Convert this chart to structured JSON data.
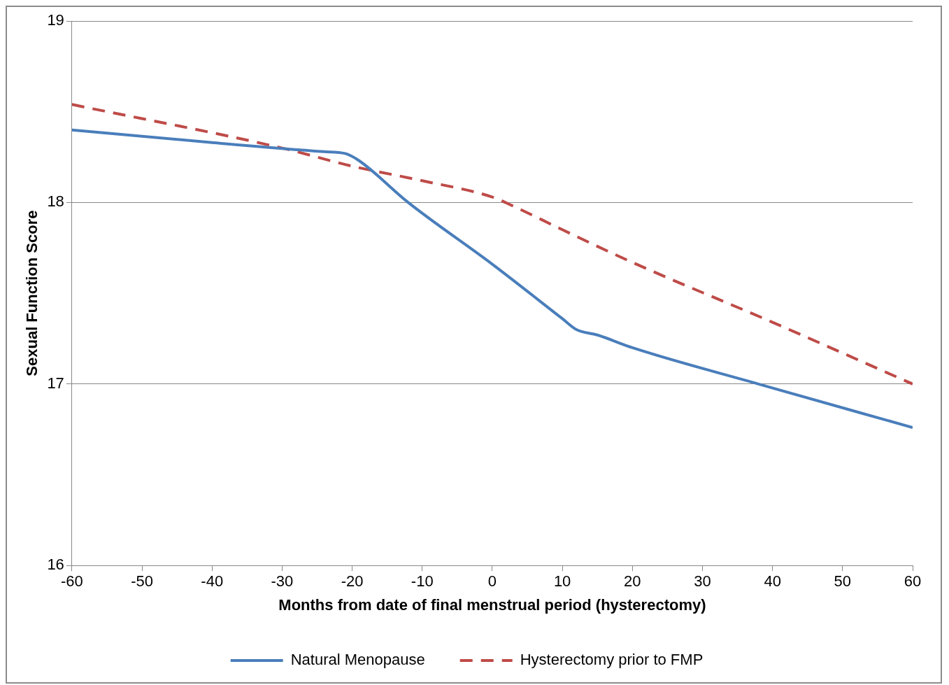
{
  "chart_data": {
    "type": "line",
    "xlabel": "Months from date of final menstrual period (hysterectomy)",
    "ylabel": "Sexual Function Score",
    "xlim": [
      -60,
      60
    ],
    "xticks": [
      -60,
      -50,
      -40,
      -30,
      -20,
      -10,
      0,
      10,
      20,
      30,
      40,
      50,
      60
    ],
    "ylim": [
      16,
      19
    ],
    "yticks": [
      16,
      17,
      18,
      19
    ],
    "grid": "y",
    "legend": "bottom",
    "marker": "none",
    "series": [
      {
        "name": "Natural Menopause",
        "color": "#4a7ebb",
        "line_style": "solid",
        "x": [
          -60,
          -40,
          -24,
          -21,
          -19,
          -12,
          0,
          10,
          12,
          15,
          20,
          38,
          60
        ],
        "values": [
          18.4,
          18.33,
          18.28,
          18.27,
          18.23,
          18.0,
          17.66,
          17.36,
          17.3,
          17.27,
          17.2,
          17.0,
          16.76
        ]
      },
      {
        "name": "Hysterectomy prior to FMP",
        "color": "#be4b48",
        "line_style": "dashed",
        "x": [
          -60,
          -30,
          -20,
          -10,
          0,
          3,
          10,
          20,
          40,
          60
        ],
        "values": [
          18.54,
          18.3,
          18.2,
          18.12,
          18.03,
          17.98,
          17.85,
          17.67,
          17.34,
          17.0
        ]
      }
    ]
  }
}
